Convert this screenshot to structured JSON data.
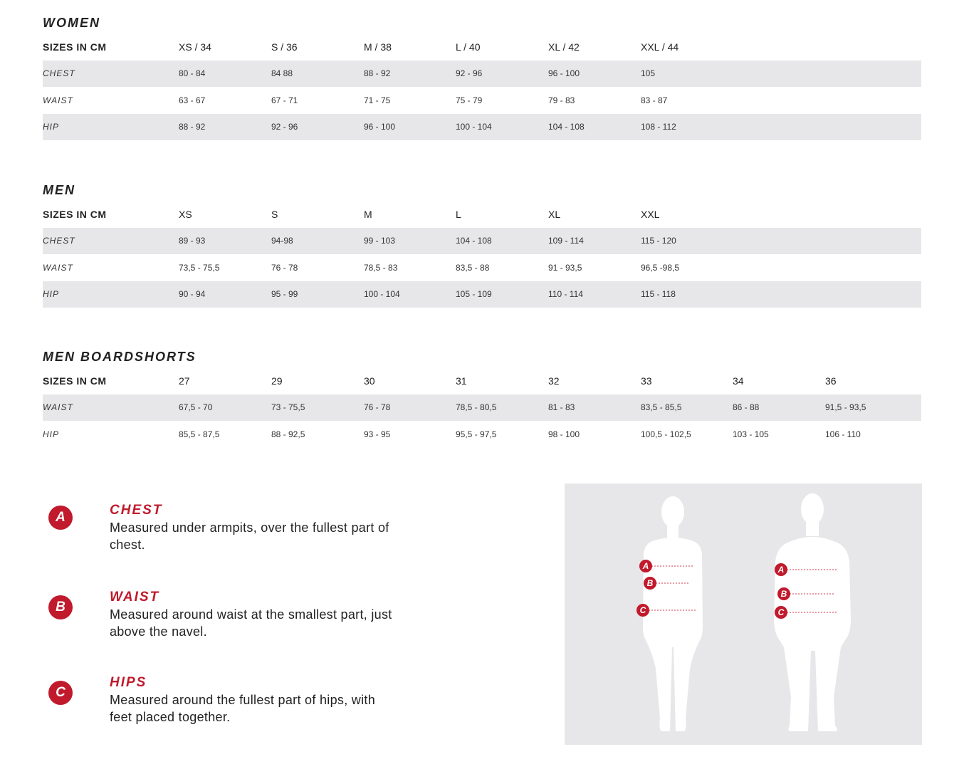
{
  "tables": [
    {
      "title": "WOMEN",
      "header": [
        "SIZES IN CM",
        "XS / 34",
        "S / 36",
        "M / 38",
        "L / 40",
        "XL / 42",
        "XXL / 44"
      ],
      "rows": [
        [
          "CHEST",
          "80 - 84",
          "84  88",
          "88 - 92",
          "92 - 96",
          "96 - 100",
          "105"
        ],
        [
          "WAIST",
          "63 - 67",
          "67 - 71",
          "71 - 75",
          "75 - 79",
          "79 - 83",
          "83 - 87"
        ],
        [
          "HIP",
          "88 - 92",
          "92 - 96",
          "96 - 100",
          "100 - 104",
          "104 - 108",
          "108 - 112"
        ]
      ]
    },
    {
      "title": "MEN",
      "header": [
        "SIZES IN CM",
        "XS",
        "S",
        "M",
        "L",
        "XL",
        "XXL"
      ],
      "rows": [
        [
          "CHEST",
          "89 - 93",
          "94-98",
          "99 - 103",
          "104 - 108",
          "109 - 114",
          "115 - 120"
        ],
        [
          "WAIST",
          "73,5 - 75,5",
          "76 - 78",
          "78,5 - 83",
          "83,5 - 88",
          "91 - 93,5",
          "96,5 -98,5"
        ],
        [
          "HIP",
          "90 - 94",
          "95 - 99",
          "100 - 104",
          "105 - 109",
          "110 - 114",
          "115 - 118"
        ]
      ]
    },
    {
      "title": "MEN BOARDSHORTS",
      "header": [
        "SIZES IN CM",
        "27",
        "29",
        "30",
        "31",
        "32",
        "33",
        "34",
        "36"
      ],
      "rows": [
        [
          "WAIST",
          "67,5 - 70",
          "73 - 75,5",
          "76 - 78",
          "78,5 - 80,5",
          "81 - 83",
          "83,5 - 85,5",
          "86 - 88",
          "91,5 - 93,5"
        ],
        [
          "HIP",
          "85,5 - 87,5",
          "88 - 92,5",
          "93 - 95",
          "95,5 - 97,5",
          "98 - 100",
          "100,5 - 102,5",
          "103 - 105",
          "106 - 110"
        ]
      ]
    }
  ],
  "legend": [
    {
      "badge": "A",
      "title": "CHEST",
      "text": "Measured under armpits, over the fullest part of chest."
    },
    {
      "badge": "B",
      "title": "WAIST",
      "text": "Measured around waist at the smallest part, just above the navel."
    },
    {
      "badge": "C",
      "title": "HIPS",
      "text": "Measured around the fullest part of hips, with feet placed together."
    }
  ],
  "figure": {
    "markers": [
      "A",
      "B",
      "C"
    ]
  },
  "colors": {
    "accent": "#c01a2c",
    "row_shade": "#e7e7e9",
    "panel": "#e7e7e9"
  }
}
